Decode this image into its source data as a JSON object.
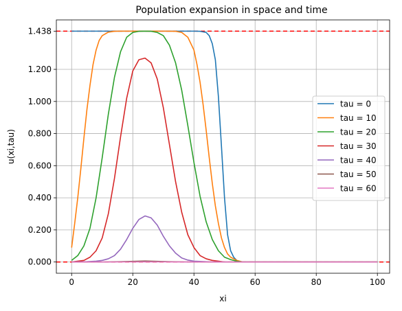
{
  "chart_data": {
    "type": "line",
    "title": "Population expansion in space and time",
    "xlabel": "xi",
    "ylabel": "u(xi,tau)",
    "xlim": [
      -5,
      104
    ],
    "ylim": [
      -0.07,
      1.508
    ],
    "xticks": [
      0,
      20,
      40,
      60,
      80,
      100
    ],
    "yticks": [
      0.0,
      0.2,
      0.4,
      0.6,
      0.8,
      1.0,
      1.2,
      1.438
    ],
    "ytick_labels": [
      "0.000",
      "0.200",
      "0.400",
      "0.600",
      "0.800",
      "1.000",
      "1.200",
      "1.438"
    ],
    "grid": true,
    "legend_position": "center-right",
    "reference_lines": [
      {
        "orientation": "horizontal",
        "y": 1.438,
        "color": "#ff0000",
        "style": "dashed"
      },
      {
        "orientation": "horizontal",
        "y": 0.0,
        "color": "#ff0000",
        "style": "dashed"
      }
    ],
    "series": [
      {
        "name": "tau = 0",
        "color": "#1f77b4",
        "x": [
          0,
          5,
          10,
          20,
          30,
          40,
          42,
          44,
          45,
          46,
          47,
          48,
          49,
          50,
          51,
          52,
          53,
          54,
          55,
          60,
          80,
          100
        ],
        "y": [
          1.438,
          1.438,
          1.438,
          1.438,
          1.438,
          1.438,
          1.437,
          1.43,
          1.41,
          1.36,
          1.26,
          1.03,
          0.72,
          0.4,
          0.17,
          0.07,
          0.03,
          0.01,
          0.0,
          0.0,
          0.0,
          0.0
        ]
      },
      {
        "name": "tau = 10",
        "color": "#ff7f0e",
        "x": [
          0,
          1,
          2,
          3,
          4,
          5,
          6,
          7,
          8,
          9,
          10,
          12,
          14,
          16,
          20,
          25,
          30,
          34,
          36,
          38,
          40,
          41,
          42,
          43,
          44,
          45,
          46,
          47,
          48,
          49,
          50,
          51,
          52,
          54,
          56,
          60,
          80,
          100
        ],
        "y": [
          0.09,
          0.24,
          0.4,
          0.58,
          0.77,
          0.95,
          1.1,
          1.23,
          1.32,
          1.38,
          1.41,
          1.432,
          1.437,
          1.438,
          1.438,
          1.438,
          1.438,
          1.437,
          1.43,
          1.4,
          1.32,
          1.23,
          1.12,
          0.98,
          0.82,
          0.65,
          0.49,
          0.35,
          0.24,
          0.15,
          0.09,
          0.05,
          0.03,
          0.01,
          0.0,
          0.0,
          0.0,
          0.0
        ]
      },
      {
        "name": "tau = 20",
        "color": "#2ca02c",
        "x": [
          0,
          2,
          4,
          6,
          8,
          10,
          12,
          14,
          16,
          18,
          20,
          22,
          24,
          26,
          28,
          30,
          32,
          34,
          36,
          38,
          40,
          42,
          44,
          46,
          48,
          50,
          52,
          54,
          56,
          60,
          80,
          100
        ],
        "y": [
          0.01,
          0.04,
          0.1,
          0.21,
          0.4,
          0.65,
          0.92,
          1.15,
          1.31,
          1.4,
          1.43,
          1.437,
          1.438,
          1.437,
          1.43,
          1.41,
          1.35,
          1.24,
          1.07,
          0.85,
          0.62,
          0.41,
          0.25,
          0.14,
          0.07,
          0.03,
          0.015,
          0.005,
          0.0,
          0.0,
          0.0,
          0.0
        ]
      },
      {
        "name": "tau = 30",
        "color": "#d62728",
        "x": [
          0,
          2,
          4,
          6,
          8,
          10,
          12,
          14,
          16,
          18,
          20,
          22,
          24,
          26,
          28,
          30,
          32,
          34,
          36,
          38,
          40,
          42,
          44,
          46,
          48,
          50,
          55,
          60,
          80,
          100
        ],
        "y": [
          0.0,
          0.005,
          0.01,
          0.03,
          0.07,
          0.15,
          0.3,
          0.52,
          0.78,
          1.02,
          1.19,
          1.26,
          1.27,
          1.24,
          1.14,
          0.96,
          0.73,
          0.5,
          0.31,
          0.17,
          0.09,
          0.04,
          0.02,
          0.01,
          0.005,
          0.0,
          0.0,
          0.0,
          0.0,
          0.0
        ]
      },
      {
        "name": "tau = 40",
        "color": "#9467bd",
        "x": [
          0,
          5,
          8,
          10,
          12,
          14,
          16,
          18,
          20,
          22,
          24,
          26,
          28,
          30,
          32,
          34,
          36,
          38,
          40,
          45,
          50,
          60,
          80,
          100
        ],
        "y": [
          0.0,
          0.002,
          0.005,
          0.01,
          0.02,
          0.04,
          0.08,
          0.14,
          0.21,
          0.265,
          0.287,
          0.275,
          0.23,
          0.16,
          0.1,
          0.055,
          0.025,
          0.012,
          0.005,
          0.001,
          0.0,
          0.0,
          0.0,
          0.0
        ]
      },
      {
        "name": "tau = 50",
        "color": "#8c564b",
        "x": [
          0,
          10,
          16,
          20,
          24,
          28,
          32,
          40,
          60,
          80,
          100
        ],
        "y": [
          0.0,
          0.0,
          0.002,
          0.004,
          0.006,
          0.004,
          0.002,
          0.0,
          0.0,
          0.0,
          0.0
        ]
      },
      {
        "name": "tau = 60",
        "color": "#e377c2",
        "x": [
          0,
          10,
          20,
          24,
          30,
          40,
          60,
          80,
          100
        ],
        "y": [
          0.0,
          0.0,
          0.0005,
          0.001,
          0.0005,
          0.0,
          0.0,
          0.0,
          0.0
        ]
      }
    ]
  }
}
